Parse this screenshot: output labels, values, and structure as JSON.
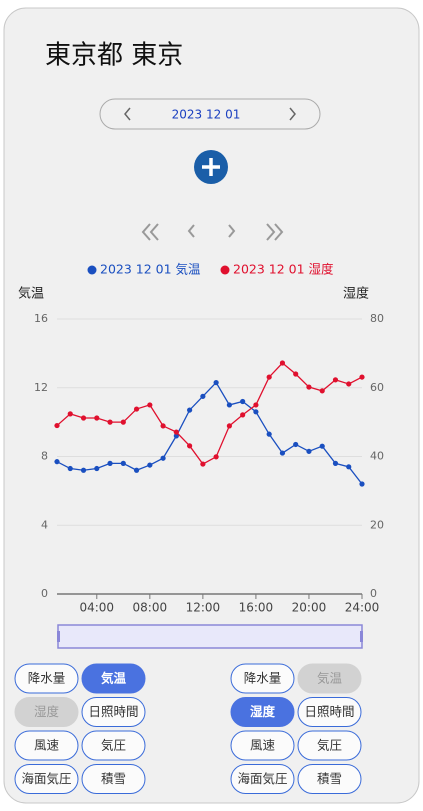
{
  "header": {
    "title": "東京都 東京"
  },
  "date_picker": {
    "date": "2023 12 01"
  },
  "chart_data": {
    "type": "line",
    "y_label": "気温",
    "y2_label": "湿度",
    "x": [
      1,
      2,
      3,
      4,
      5,
      6,
      7,
      8,
      9,
      10,
      11,
      12,
      13,
      14,
      15,
      16,
      17,
      18,
      19,
      20,
      21,
      22,
      23,
      24
    ],
    "xlim": [
      1,
      24
    ],
    "xticks": [
      {
        "value": 4,
        "label": "04:00"
      },
      {
        "value": 8,
        "label": "08:00"
      },
      {
        "value": 12,
        "label": "12:00"
      },
      {
        "value": 16,
        "label": "16:00"
      },
      {
        "value": 20,
        "label": "20:00"
      },
      {
        "value": 24,
        "label": "24:00"
      }
    ],
    "ylim": [
      0,
      16
    ],
    "yticks": [
      0,
      4,
      8,
      12,
      16
    ],
    "y2lim": [
      0,
      80
    ],
    "y2ticks": [
      0,
      20,
      40,
      60,
      80
    ],
    "grid": true,
    "series": [
      {
        "name": "2023 12 01 気温",
        "color": "#1a4fc0",
        "values": [
          7.7,
          7.3,
          7.2,
          7.3,
          7.6,
          7.6,
          7.2,
          7.5,
          7.9,
          9.2,
          10.7,
          11.5,
          12.3,
          11.0,
          11.2,
          10.6,
          9.3,
          8.2,
          8.7,
          8.3,
          8.6,
          7.6,
          7.4,
          6.4
        ]
      },
      {
        "name": "2023 12 01 湿度",
        "color": "#e0102e",
        "axis": "y2",
        "values": [
          49,
          52.4,
          51.2,
          51.2,
          50,
          50,
          53.8,
          55,
          48.9,
          47.1,
          43.1,
          37.8,
          39.9,
          48.9,
          52.1,
          55,
          63.1,
          67.2,
          64,
          60.2,
          59.1,
          62.3,
          61.1,
          63.1
        ]
      }
    ]
  },
  "left_buttons": [
    {
      "label": "降水量",
      "state": "normal"
    },
    {
      "label": "気温",
      "state": "selected"
    },
    {
      "label": "湿度",
      "state": "disabled"
    },
    {
      "label": "日照時間",
      "state": "normal"
    },
    {
      "label": "風速",
      "state": "normal"
    },
    {
      "label": "気圧",
      "state": "normal"
    },
    {
      "label": "海面気圧",
      "state": "normal"
    },
    {
      "label": "積雪",
      "state": "normal"
    }
  ],
  "right_buttons": [
    {
      "label": "降水量",
      "state": "normal"
    },
    {
      "label": "気温",
      "state": "disabled"
    },
    {
      "label": "湿度",
      "state": "selected"
    },
    {
      "label": "日照時間",
      "state": "normal"
    },
    {
      "label": "風速",
      "state": "normal"
    },
    {
      "label": "気圧",
      "state": "normal"
    },
    {
      "label": "海面気圧",
      "state": "normal"
    },
    {
      "label": "積雪",
      "state": "normal"
    }
  ]
}
